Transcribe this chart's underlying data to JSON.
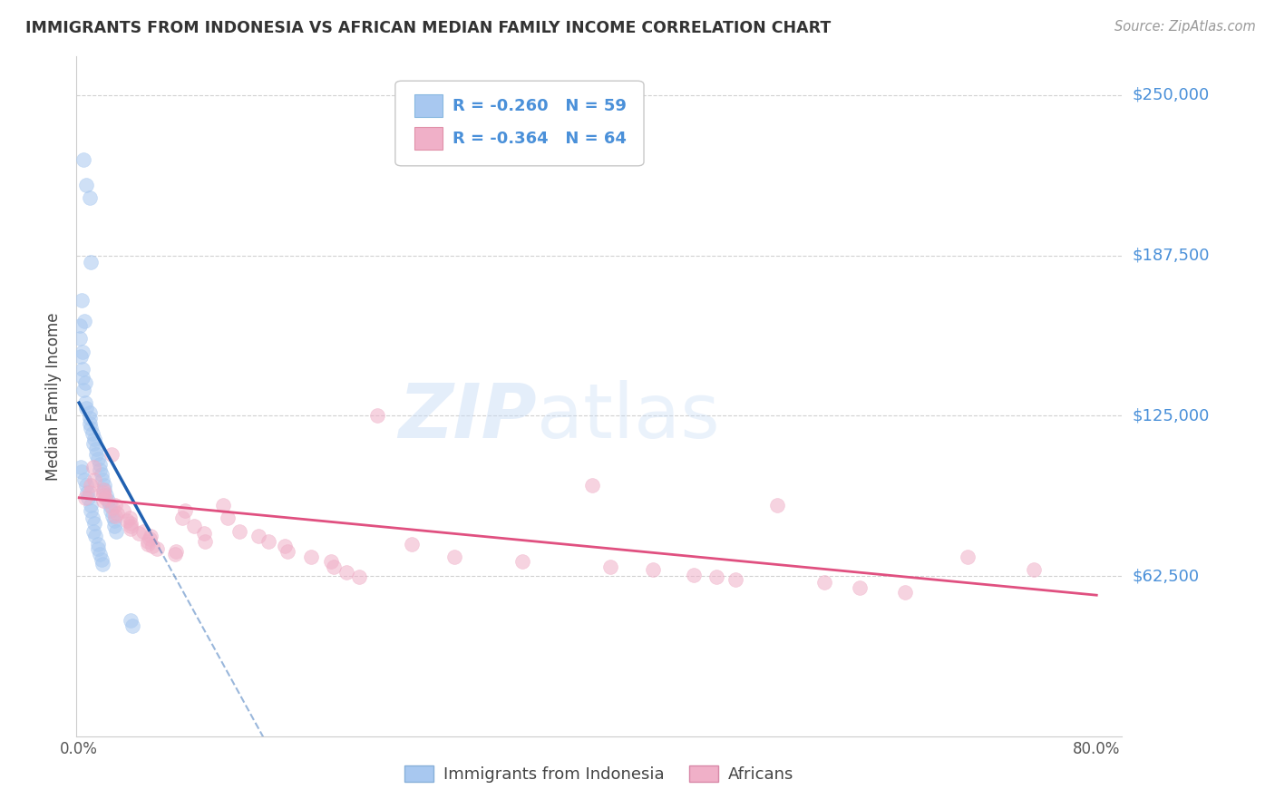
{
  "title": "IMMIGRANTS FROM INDONESIA VS AFRICAN MEDIAN FAMILY INCOME CORRELATION CHART",
  "source": "Source: ZipAtlas.com",
  "ylabel": "Median Family Income",
  "bg_color": "#ffffff",
  "grid_color": "#cccccc",
  "blue_color": "#a8c8f0",
  "pink_color": "#f0b0c8",
  "trend_blue": "#2060b0",
  "trend_pink": "#e05080",
  "tick_color": "#4a90d9",
  "legend_r_blue": "-0.260",
  "legend_n_blue": "59",
  "legend_r_pink": "-0.364",
  "legend_n_pink": "64",
  "watermark": "ZIPatlas",
  "ylim": [
    0,
    265000
  ],
  "xlim": [
    -0.002,
    0.82
  ],
  "ytick_vals": [
    62500,
    125000,
    187500,
    250000
  ],
  "ytick_labels": [
    "$62,500",
    "$125,000",
    "$187,500",
    "$250,000"
  ],
  "indo_x": [
    0.004,
    0.005,
    0.008,
    0.01,
    0.002,
    0.003,
    0.001,
    0.001,
    0.002,
    0.002,
    0.003,
    0.003,
    0.004,
    0.004,
    0.005,
    0.006,
    0.007,
    0.007,
    0.008,
    0.009,
    0.01,
    0.011,
    0.012,
    0.013,
    0.014,
    0.015,
    0.016,
    0.017,
    0.018,
    0.019,
    0.02,
    0.021,
    0.022,
    0.023,
    0.024,
    0.025,
    0.026,
    0.027,
    0.028,
    0.029,
    0.002,
    0.003,
    0.004,
    0.005,
    0.006,
    0.007,
    0.008,
    0.009,
    0.01,
    0.011,
    0.012,
    0.013,
    0.014,
    0.015,
    0.016,
    0.017,
    0.018,
    0.04,
    0.041
  ],
  "indo_y": [
    225000,
    215000,
    210000,
    185000,
    170000,
    162000,
    160000,
    155000,
    150000,
    148000,
    143000,
    140000,
    138000,
    135000,
    130000,
    128000,
    126000,
    124000,
    122000,
    120000,
    118000,
    116000,
    114000,
    112000,
    110000,
    108000,
    106000,
    104000,
    102000,
    100000,
    98000,
    96000,
    94000,
    92000,
    90000,
    88000,
    86000,
    84000,
    82000,
    80000,
    105000,
    103000,
    100000,
    98000,
    95000,
    93000,
    90000,
    88000,
    85000,
    83000,
    80000,
    78000,
    75000,
    73000,
    71000,
    69000,
    67000,
    45000,
    43000
  ],
  "afr_x": [
    0.005,
    0.007,
    0.009,
    0.011,
    0.013,
    0.015,
    0.017,
    0.019,
    0.021,
    0.023,
    0.025,
    0.027,
    0.029,
    0.031,
    0.033,
    0.035,
    0.037,
    0.039,
    0.041,
    0.043,
    0.045,
    0.047,
    0.049,
    0.051,
    0.053,
    0.055,
    0.057,
    0.06,
    0.065,
    0.07,
    0.075,
    0.08,
    0.085,
    0.09,
    0.095,
    0.1,
    0.11,
    0.12,
    0.13,
    0.14,
    0.15,
    0.16,
    0.17,
    0.18,
    0.19,
    0.2,
    0.21,
    0.22,
    0.24,
    0.26,
    0.3,
    0.35,
    0.4,
    0.42,
    0.45,
    0.48,
    0.5,
    0.52,
    0.55,
    0.58,
    0.62,
    0.65,
    0.7,
    0.75
  ],
  "afr_y": [
    95000,
    93000,
    105000,
    100000,
    98000,
    96000,
    95000,
    94000,
    93000,
    92000,
    110000,
    90000,
    89000,
    88000,
    87000,
    86000,
    85000,
    84000,
    83000,
    82000,
    81000,
    80000,
    79000,
    78000,
    77000,
    76000,
    75000,
    74000,
    73000,
    72000,
    71000,
    88000,
    85000,
    82000,
    79000,
    76000,
    90000,
    85000,
    80000,
    78000,
    76000,
    74000,
    72000,
    70000,
    68000,
    66000,
    64000,
    62000,
    125000,
    75000,
    70000,
    68000,
    98000,
    66000,
    65000,
    63000,
    62000,
    61000,
    90000,
    60000,
    58000,
    56000,
    70000,
    65000
  ]
}
